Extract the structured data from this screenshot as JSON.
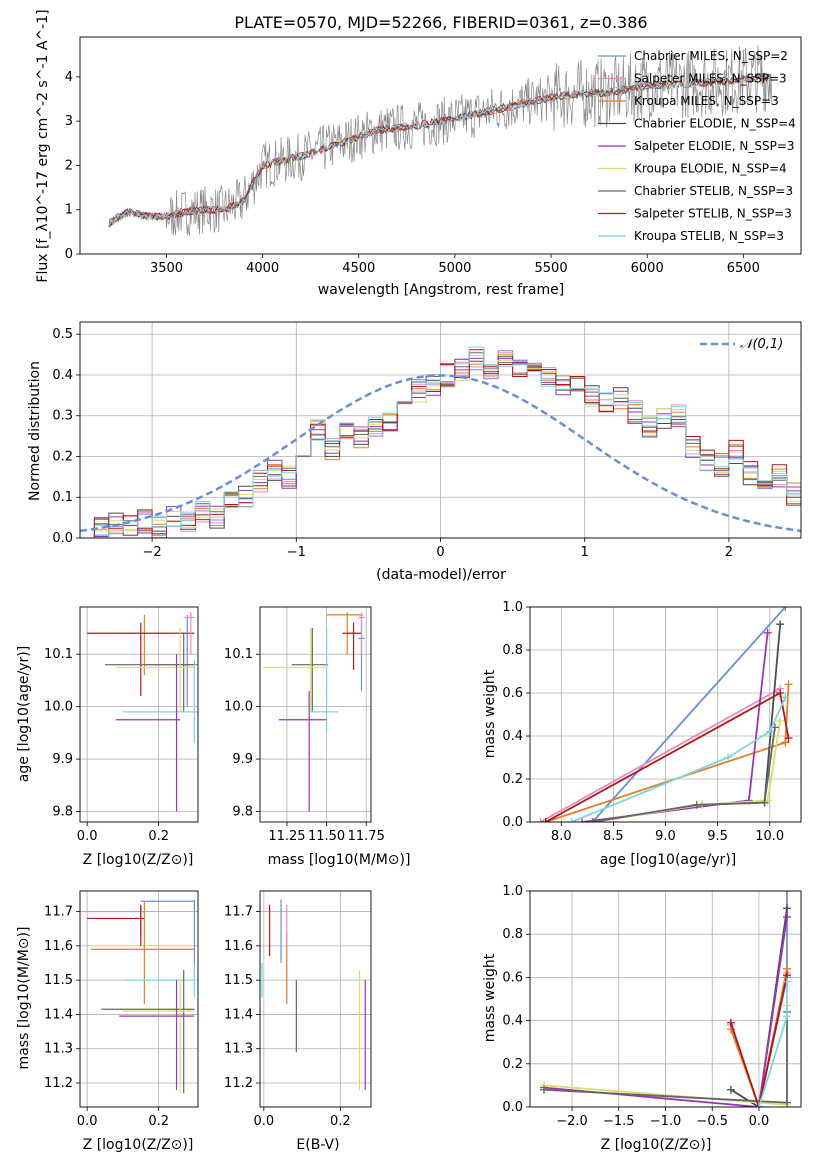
{
  "colors": {
    "chabrier_miles": "#6a8fd6",
    "salpeter_miles": "#e88cc0",
    "kroupa_miles": "#e07f2a",
    "chabrier_elodie": "#4c4c4c",
    "salpeter_elodie": "#9b35b8",
    "kroupa_elodie": "#d4e06a",
    "chabrier_stelib": "#666666",
    "salpeter_stelib": "#b5161b",
    "kroupa_stelib": "#7fd5dc",
    "normal": "#6a8fd6",
    "grid": "#b0b0b0"
  },
  "chart_data": [
    {
      "type": "line",
      "title": "PLATE=0570, MJD=52266, FIBERID=0361, z=0.386",
      "xlabel": "wavelength [Angstrom, rest frame]",
      "ylabel": "Flux [f_λ10^-17 erg cm^-2 s^-1 A^-1]",
      "xlim": [
        3050,
        6800
      ],
      "ylim": [
        0,
        4.9
      ],
      "xticks": [
        3500,
        4000,
        4500,
        5000,
        5500,
        6000,
        6500
      ],
      "yticks": [
        0,
        1,
        2,
        3,
        4
      ],
      "grid": false,
      "legend_position": "top-right",
      "series": [
        {
          "name": "Chabrier MILES, N_SSP=2",
          "color_key": "chabrier_miles"
        },
        {
          "name": "Salpeter MILES, N_SSP=3",
          "color_key": "salpeter_miles"
        },
        {
          "name": "Kroupa MILES, N_SSP=3",
          "color_key": "kroupa_miles"
        },
        {
          "name": "Chabrier ELODIE, N_SSP=4",
          "color_key": "chabrier_elodie"
        },
        {
          "name": "Salpeter ELODIE, N_SSP=3",
          "color_key": "salpeter_elodie"
        },
        {
          "name": "Kroupa ELODIE, N_SSP=4",
          "color_key": "kroupa_elodie"
        },
        {
          "name": "Chabrier STELIB, N_SSP=3",
          "color_key": "chabrier_stelib"
        },
        {
          "name": "Salpeter STELIB, N_SSP=3",
          "color_key": "salpeter_stelib"
        },
        {
          "name": "Kroupa STELIB, N_SSP=3",
          "color_key": "kroupa_stelib"
        }
      ],
      "model_trend": {
        "x": [
          3200,
          3300,
          3400,
          3500,
          3600,
          3700,
          3800,
          3900,
          4000,
          4200,
          4400,
          4600,
          4800,
          5000,
          5200,
          5400,
          5600,
          5800,
          6000,
          6200,
          6400,
          6600
        ],
        "y": [
          0.7,
          0.95,
          0.85,
          0.85,
          0.95,
          1.0,
          1.0,
          1.2,
          2.0,
          2.2,
          2.5,
          2.8,
          2.9,
          3.05,
          3.25,
          3.45,
          3.6,
          3.65,
          3.8,
          3.85,
          3.9,
          4.0
        ]
      }
    },
    {
      "type": "bar",
      "xlabel": "(data-model)/error",
      "ylabel": "Normed distribution",
      "xlim": [
        -2.5,
        2.5
      ],
      "ylim": [
        0,
        0.53
      ],
      "xticks": [
        -2,
        -1,
        0,
        1,
        2
      ],
      "yticks": [
        0.0,
        0.1,
        0.2,
        0.3,
        0.4,
        0.5
      ],
      "grid": true,
      "legend_position": "top-right",
      "legend_label": "𝒩(0,1)",
      "bin_width": 0.1,
      "bin_start": -2.5,
      "histogram": [
        0.02,
        0.02,
        0.04,
        0.03,
        0.04,
        0.03,
        0.05,
        0.04,
        0.06,
        0.05,
        0.09,
        0.1,
        0.14,
        0.17,
        0.15,
        0.2,
        0.27,
        0.22,
        0.26,
        0.25,
        0.27,
        0.29,
        0.33,
        0.36,
        0.38,
        0.4,
        0.41,
        0.44,
        0.42,
        0.44,
        0.41,
        0.4,
        0.39,
        0.38,
        0.37,
        0.35,
        0.33,
        0.34,
        0.31,
        0.27,
        0.29,
        0.3,
        0.22,
        0.19,
        0.18,
        0.21,
        0.16,
        0.13,
        0.15,
        0.11,
        0.12,
        0.1,
        0.08,
        0.09,
        0.06,
        0.05,
        0.05,
        0.04,
        0.04,
        0.05,
        0.04,
        0.03,
        0.03,
        0.03,
        0.02
      ],
      "normal_curve": {
        "mu": 0,
        "sigma": 1
      }
    },
    {
      "type": "scatter",
      "xlabel": "Z [log10(Z/Z⊙)]",
      "ylabel": "age [log10(age/yr)]",
      "xlim": [
        -0.02,
        0.31
      ],
      "ylim": [
        9.78,
        10.19
      ],
      "xticks": [
        0.0,
        0.2
      ],
      "yticks": [
        9.8,
        9.9,
        10.0,
        10.1
      ],
      "grid": true,
      "crosses": [
        {
          "color_key": "kroupa_miles",
          "x": 0.16,
          "xerr": [
            0.16,
            0.31
          ],
          "y": 10.08,
          "yerr": [
            10.06,
            10.175
          ]
        },
        {
          "color_key": "salpeter_stelib",
          "x": 0.15,
          "xerr": [
            0.0,
            0.3
          ],
          "y": 10.14,
          "yerr": [
            10.02,
            10.16
          ]
        },
        {
          "color_key": "chabrier_miles",
          "x": 0.28,
          "xerr": [
            0.26,
            0.3
          ],
          "y": 10.08,
          "yerr": [
            10.0,
            10.175
          ]
        },
        {
          "color_key": "chabrier_stelib",
          "x": 0.27,
          "xerr": [
            0.05,
            0.3
          ],
          "y": 10.08,
          "yerr": [
            9.99,
            10.14
          ]
        },
        {
          "color_key": "kroupa_elodie",
          "x": 0.26,
          "xerr": [
            0.08,
            0.3
          ],
          "y": 10.075,
          "yerr": [
            9.99,
            10.15
          ]
        },
        {
          "color_key": "kroupa_stelib",
          "x": 0.3,
          "xerr": [
            0.1,
            0.31
          ],
          "y": 9.99,
          "yerr": [
            9.93,
            10.09
          ]
        },
        {
          "color_key": "salpeter_elodie",
          "x": 0.25,
          "xerr": [
            0.08,
            0.26
          ],
          "y": 9.975,
          "yerr": [
            9.8,
            10.1
          ]
        },
        {
          "color_key": "salpeter_miles",
          "x": 0.29,
          "xerr": [
            0.27,
            0.3
          ],
          "y": 10.17,
          "yerr": [
            10.1,
            10.18
          ]
        }
      ]
    },
    {
      "type": "scatter",
      "xlabel": "mass [log10(M/M⊙)]",
      "ylabel": "",
      "xlim": [
        11.08,
        11.78
      ],
      "ylim": [
        9.78,
        10.19
      ],
      "xticks": [
        11.25,
        11.5,
        11.75
      ],
      "yticks": [
        9.8,
        9.9,
        10.0,
        10.1
      ],
      "grid": true,
      "crosses": [
        {
          "color_key": "kroupa_miles",
          "x": 11.63,
          "xerr": [
            11.5,
            11.73
          ],
          "y": 10.175,
          "yerr": [
            10.1,
            10.18
          ]
        },
        {
          "color_key": "salpeter_stelib",
          "x": 11.67,
          "xerr": [
            11.6,
            11.72
          ],
          "y": 10.14,
          "yerr": [
            10.07,
            10.16
          ]
        },
        {
          "color_key": "chabrier_miles",
          "x": 11.72,
          "xerr": [
            11.7,
            11.74
          ],
          "y": 10.13,
          "yerr": [
            10.03,
            10.175
          ]
        },
        {
          "color_key": "chabrier_stelib",
          "x": 11.41,
          "xerr": [
            11.28,
            11.51
          ],
          "y": 10.08,
          "yerr": [
            9.99,
            10.15
          ]
        },
        {
          "color_key": "kroupa_elodie",
          "x": 11.4,
          "xerr": [
            11.1,
            11.5
          ],
          "y": 10.075,
          "yerr": [
            9.99,
            10.15
          ]
        },
        {
          "color_key": "kroupa_stelib",
          "x": 11.5,
          "xerr": [
            11.4,
            11.57
          ],
          "y": 9.99,
          "yerr": [
            9.95,
            10.15
          ]
        },
        {
          "color_key": "salpeter_elodie",
          "x": 11.39,
          "xerr": [
            11.2,
            11.5
          ],
          "y": 9.975,
          "yerr": [
            9.8,
            10.03
          ]
        },
        {
          "color_key": "salpeter_miles",
          "x": 11.72,
          "xerr": [
            11.7,
            11.74
          ],
          "y": 10.17,
          "yerr": [
            10.1,
            10.18
          ]
        }
      ]
    },
    {
      "type": "line",
      "xlabel": "age [log10(age/yr)]",
      "ylabel": "mass weight",
      "xlim": [
        7.7,
        10.3
      ],
      "ylim": [
        0,
        1.0
      ],
      "xticks": [
        8.0,
        8.5,
        9.0,
        9.5,
        10.0
      ],
      "yticks": [
        0.0,
        0.2,
        0.4,
        0.6,
        0.8,
        1.0
      ],
      "grid": true,
      "polylines": [
        {
          "color_key": "chabrier_miles",
          "x": [
            8.3,
            10.15
          ],
          "y": [
            0.0,
            1.0
          ]
        },
        {
          "color_key": "salpeter_miles",
          "x": [
            7.8,
            10.1
          ],
          "y": [
            0.0,
            0.62
          ]
        },
        {
          "color_key": "kroupa_miles",
          "x": [
            7.85,
            10.15,
            10.18,
            10.15
          ],
          "y": [
            0.0,
            0.37,
            0.64,
            0.37
          ]
        },
        {
          "color_key": "chabrier_elodie",
          "x": [
            8.3,
            9.35,
            9.95,
            10.1
          ],
          "y": [
            0.0,
            0.08,
            0.09,
            0.92
          ]
        },
        {
          "color_key": "salpeter_elodie",
          "x": [
            8.2,
            9.8,
            9.98
          ],
          "y": [
            0.0,
            0.1,
            0.88
          ]
        },
        {
          "color_key": "kroupa_elodie",
          "x": [
            8.3,
            9.35,
            9.98,
            10.1
          ],
          "y": [
            0.0,
            0.08,
            0.1,
            0.47
          ]
        },
        {
          "color_key": "chabrier_stelib",
          "x": [
            8.3,
            9.3,
            9.95,
            10.05
          ],
          "y": [
            0.0,
            0.08,
            0.09,
            0.44
          ]
        },
        {
          "color_key": "salpeter_stelib",
          "x": [
            7.85,
            10.1,
            10.18
          ],
          "y": [
            0.0,
            0.6,
            0.39
          ]
        },
        {
          "color_key": "kroupa_stelib",
          "x": [
            8.1,
            9.6,
            10.0,
            10.15
          ],
          "y": [
            0.0,
            0.3,
            0.42,
            0.58
          ]
        }
      ]
    },
    {
      "type": "scatter",
      "xlabel": "Z [log10(Z/Z⊙)]",
      "ylabel": "mass [log10(M/M⊙)]",
      "xlim": [
        -0.02,
        0.31
      ],
      "ylim": [
        11.13,
        11.76
      ],
      "xticks": [
        0.0,
        0.2
      ],
      "yticks": [
        11.2,
        11.3,
        11.4,
        11.5,
        11.6,
        11.7
      ],
      "grid": true,
      "crosses": [
        {
          "color_key": "chabrier_miles",
          "x": 0.3,
          "xerr": [
            0.15,
            0.3
          ],
          "y": 11.73,
          "yerr": [
            11.5,
            11.735
          ]
        },
        {
          "color_key": "salpeter_miles",
          "x": 0.15,
          "xerr": [
            0.0,
            0.16
          ],
          "y": 11.7,
          "yerr": [
            11.63,
            11.72
          ]
        },
        {
          "color_key": "salpeter_stelib",
          "x": 0.15,
          "xerr": [
            0.0,
            0.16
          ],
          "y": 11.68,
          "yerr": [
            11.6,
            11.72
          ]
        },
        {
          "color_key": "kroupa_miles",
          "x": 0.16,
          "xerr": [
            0.01,
            0.3
          ],
          "y": 11.59,
          "yerr": [
            11.43,
            11.73
          ]
        },
        {
          "color_key": "kroupa_stelib",
          "x": 0.3,
          "xerr": [
            0.1,
            0.3
          ],
          "y": 11.5,
          "yerr": [
            11.45,
            11.55
          ]
        },
        {
          "color_key": "chabrier_stelib",
          "x": 0.27,
          "xerr": [
            0.04,
            0.3
          ],
          "y": 11.415,
          "yerr": [
            11.17,
            11.53
          ]
        },
        {
          "color_key": "kroupa_elodie",
          "x": 0.26,
          "xerr": [
            0.1,
            0.3
          ],
          "y": 11.41,
          "yerr": [
            11.17,
            11.5
          ]
        },
        {
          "color_key": "salpeter_elodie",
          "x": 0.25,
          "xerr": [
            0.09,
            0.3
          ],
          "y": 11.395,
          "yerr": [
            11.18,
            11.5
          ]
        }
      ]
    },
    {
      "type": "scatter",
      "xlabel": "E(B-V)",
      "ylabel": "",
      "xlim": [
        -0.01,
        0.28
      ],
      "ylim": [
        11.13,
        11.76
      ],
      "xticks": [
        0.0,
        0.2
      ],
      "yticks": [
        11.2,
        11.3,
        11.4,
        11.5,
        11.6,
        11.7
      ],
      "grid": true,
      "error_bars": [
        {
          "color_key": "salpeter_stelib",
          "x": 0.015,
          "yerr": [
            11.57,
            11.72
          ]
        },
        {
          "color_key": "chabrier_miles",
          "x": 0.045,
          "yerr": [
            11.55,
            11.735
          ]
        },
        {
          "color_key": "kroupa_miles",
          "x": 0.06,
          "yerr": [
            11.43,
            11.64
          ]
        },
        {
          "color_key": "salpeter_miles",
          "x": 0.06,
          "yerr": [
            11.6,
            11.72
          ]
        },
        {
          "color_key": "chabrier_stelib",
          "x": 0.085,
          "yerr": [
            11.29,
            11.5
          ]
        },
        {
          "color_key": "kroupa_elodie",
          "x": 0.25,
          "yerr": [
            11.18,
            11.53
          ]
        },
        {
          "color_key": "salpeter_elodie",
          "x": 0.265,
          "yerr": [
            11.18,
            11.5
          ]
        },
        {
          "color_key": "kroupa_stelib",
          "x": -0.005,
          "yerr": [
            11.45,
            11.55
          ]
        }
      ]
    },
    {
      "type": "line",
      "xlabel": "Z [log10(Z/Z⊙)]",
      "ylabel": "mass weight",
      "xlim": [
        -2.45,
        0.45
      ],
      "ylim": [
        0,
        1.0
      ],
      "xticks": [
        -2.0,
        -1.5,
        -1.0,
        -0.5,
        0.0
      ],
      "yticks": [
        0.0,
        0.2,
        0.4,
        0.6,
        0.8,
        1.0
      ],
      "grid": true,
      "polylines": [
        {
          "color_key": "chabrier_miles",
          "x": [
            0.0,
            0.3,
            0.3
          ],
          "y": [
            0.0,
            0.6,
            1.0
          ]
        },
        {
          "color_key": "salpeter_miles",
          "x": [
            -0.3,
            0.0,
            0.3
          ],
          "y": [
            0.38,
            0.0,
            0.62
          ]
        },
        {
          "color_key": "kroupa_miles",
          "x": [
            -0.3,
            0.0,
            0.3
          ],
          "y": [
            0.36,
            0.0,
            0.64
          ]
        },
        {
          "color_key": "chabrier_elodie",
          "x": [
            -0.3,
            0.0,
            0.3
          ],
          "y": [
            0.08,
            0.0,
            0.92
          ]
        },
        {
          "color_key": "salpeter_elodie",
          "x": [
            -2.3,
            0.0,
            0.3
          ],
          "y": [
            0.09,
            0.0,
            0.88
          ]
        },
        {
          "color_key": "kroupa_elodie",
          "x": [
            -2.3,
            0.3,
            0.3
          ],
          "y": [
            0.1,
            0.01,
            0.47
          ]
        },
        {
          "color_key": "chabrier_stelib",
          "x": [
            -2.3,
            0.3,
            0.3
          ],
          "y": [
            0.08,
            0.02,
            0.44
          ]
        },
        {
          "color_key": "salpeter_stelib",
          "x": [
            -0.3,
            0.0,
            0.3
          ],
          "y": [
            0.39,
            0.0,
            0.61
          ]
        },
        {
          "color_key": "kroupa_stelib",
          "x": [
            0.0,
            0.3,
            0.3
          ],
          "y": [
            0.0,
            0.42,
            0.58
          ]
        }
      ]
    }
  ]
}
